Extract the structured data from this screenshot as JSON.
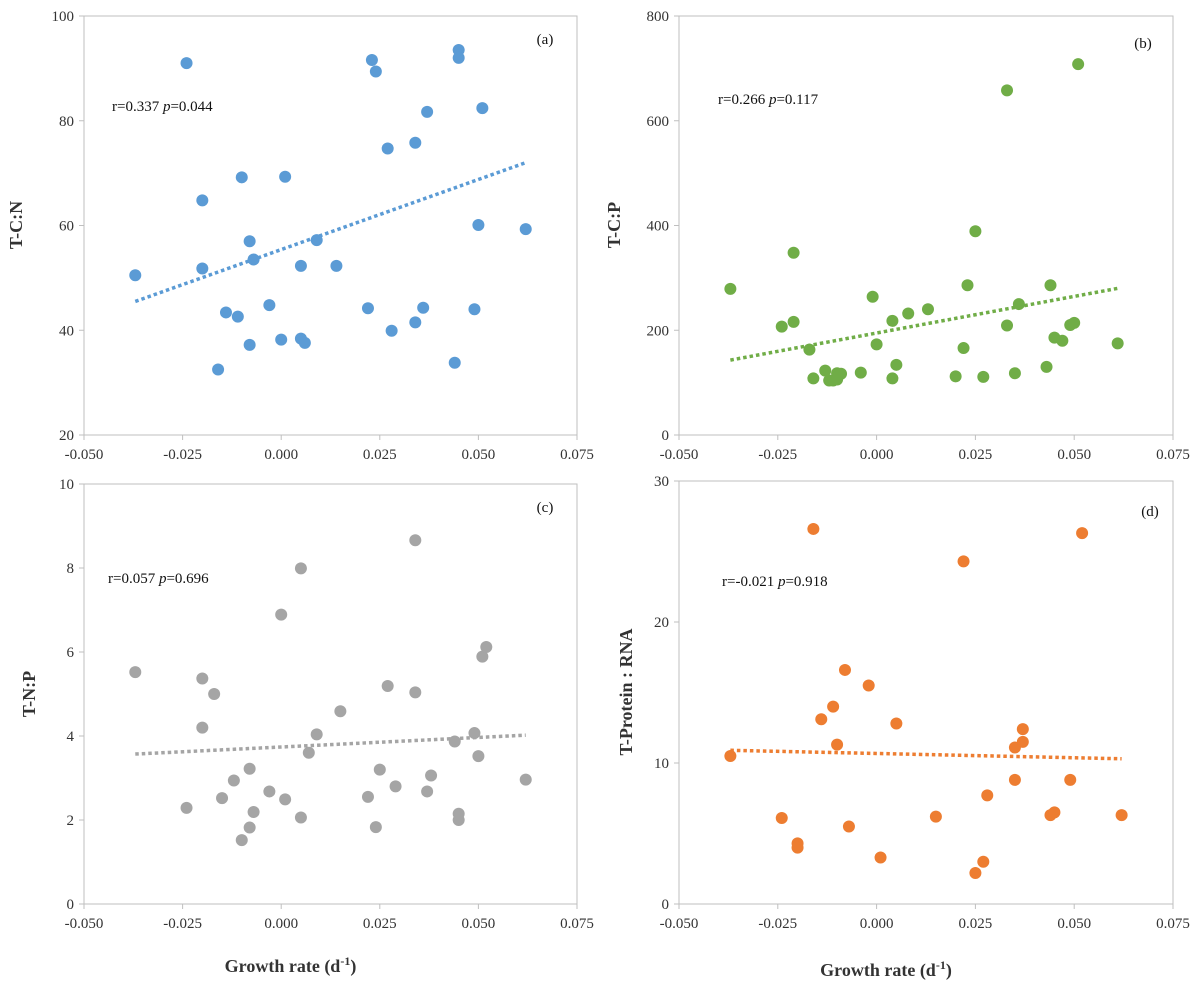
{
  "chart_data": [
    {
      "type": "scatter",
      "panel_label": "(a)",
      "ylabel": "T-C:N",
      "xlabel": "",
      "color": "#5b9bd5",
      "ylim": [
        20,
        100
      ],
      "yticks": [
        20,
        40,
        60,
        80,
        100
      ],
      "xlim": [
        -0.05,
        0.075
      ],
      "xticks": [
        "-0.050",
        "-0.025",
        "0.000",
        "0.025",
        "0.050",
        "0.075"
      ],
      "stat_r": "r=0.337",
      "stat_p_label": "p",
      "stat_p": "=0.044",
      "trendline": {
        "x": [
          -0.037,
          0.062
        ],
        "y": [
          45.5,
          72.0
        ]
      },
      "points": [
        [
          -0.037,
          50.5
        ],
        [
          -0.024,
          91.0
        ],
        [
          -0.02,
          64.8
        ],
        [
          -0.02,
          51.8
        ],
        [
          -0.016,
          32.5
        ],
        [
          -0.014,
          43.4
        ],
        [
          -0.011,
          42.6
        ],
        [
          -0.01,
          69.2
        ],
        [
          -0.008,
          57.0
        ],
        [
          -0.008,
          37.2
        ],
        [
          -0.007,
          53.5
        ],
        [
          -0.003,
          44.8
        ],
        [
          0.0,
          38.2
        ],
        [
          0.001,
          69.3
        ],
        [
          0.005,
          52.3
        ],
        [
          0.005,
          38.4
        ],
        [
          0.006,
          37.6
        ],
        [
          0.009,
          57.2
        ],
        [
          0.014,
          52.3
        ],
        [
          0.022,
          44.2
        ],
        [
          0.023,
          91.6
        ],
        [
          0.024,
          89.4
        ],
        [
          0.027,
          74.7
        ],
        [
          0.028,
          39.9
        ],
        [
          0.034,
          75.8
        ],
        [
          0.034,
          41.5
        ],
        [
          0.036,
          44.3
        ],
        [
          0.037,
          81.7
        ],
        [
          0.044,
          33.8
        ],
        [
          0.045,
          93.5
        ],
        [
          0.045,
          92.0
        ],
        [
          0.049,
          44.0
        ],
        [
          0.05,
          60.1
        ],
        [
          0.051,
          82.4
        ],
        [
          0.062,
          59.3
        ]
      ]
    },
    {
      "type": "scatter",
      "panel_label": "(b)",
      "ylabel": "T-C:P",
      "xlabel": "",
      "color": "#70ad47",
      "ylim": [
        0,
        800
      ],
      "yticks": [
        0,
        200,
        400,
        600,
        800
      ],
      "xlim": [
        -0.05,
        0.075
      ],
      "xticks": [
        "-0.050",
        "-0.025",
        "0.000",
        "0.025",
        "0.050",
        "0.075"
      ],
      "stat_r": "r=0.266",
      "stat_p_label": "p",
      "stat_p": "=0.117",
      "trendline": {
        "x": [
          -0.037,
          0.061
        ],
        "y": [
          143,
          280
        ]
      },
      "points": [
        [
          -0.037,
          279
        ],
        [
          -0.024,
          207
        ],
        [
          -0.021,
          348
        ],
        [
          -0.021,
          216
        ],
        [
          -0.017,
          163
        ],
        [
          -0.016,
          108
        ],
        [
          -0.013,
          123
        ],
        [
          -0.012,
          104
        ],
        [
          -0.011,
          104
        ],
        [
          -0.01,
          118
        ],
        [
          -0.01,
          106
        ],
        [
          -0.009,
          117
        ],
        [
          -0.004,
          119
        ],
        [
          -0.001,
          264
        ],
        [
          0.0,
          173
        ],
        [
          0.004,
          108
        ],
        [
          0.004,
          218
        ],
        [
          0.005,
          134
        ],
        [
          0.008,
          232
        ],
        [
          0.013,
          240
        ],
        [
          0.02,
          112
        ],
        [
          0.022,
          166
        ],
        [
          0.023,
          286
        ],
        [
          0.025,
          389
        ],
        [
          0.027,
          111
        ],
        [
          0.033,
          209
        ],
        [
          0.033,
          658
        ],
        [
          0.035,
          118
        ],
        [
          0.036,
          250
        ],
        [
          0.043,
          130
        ],
        [
          0.044,
          286
        ],
        [
          0.045,
          186
        ],
        [
          0.047,
          180
        ],
        [
          0.049,
          210
        ],
        [
          0.05,
          214
        ],
        [
          0.051,
          708
        ],
        [
          0.061,
          175
        ]
      ]
    },
    {
      "type": "scatter",
      "panel_label": "(c)",
      "ylabel": "T-N:P",
      "xlabel": "Growth rate (d-1)",
      "color": "#a5a5a5",
      "ylim": [
        0,
        10
      ],
      "yticks": [
        0,
        2,
        4,
        6,
        8,
        10
      ],
      "xlim": [
        -0.05,
        0.075
      ],
      "xticks": [
        "-0.050",
        "-0.025",
        "0.000",
        "0.025",
        "0.050",
        "0.075"
      ],
      "stat_r": "r=0.057",
      "stat_p_label": "p",
      "stat_p": "=0.696",
      "trendline": {
        "x": [
          -0.037,
          0.062
        ],
        "y": [
          3.57,
          4.02
        ]
      },
      "points": [
        [
          -0.037,
          5.52
        ],
        [
          -0.024,
          2.29
        ],
        [
          -0.02,
          5.37
        ],
        [
          -0.02,
          4.2
        ],
        [
          -0.017,
          5.0
        ],
        [
          -0.015,
          2.52
        ],
        [
          -0.012,
          2.94
        ],
        [
          -0.01,
          1.52
        ],
        [
          -0.008,
          3.22
        ],
        [
          -0.008,
          1.82
        ],
        [
          -0.007,
          2.19
        ],
        [
          -0.003,
          2.68
        ],
        [
          0.0,
          6.89
        ],
        [
          0.001,
          2.49
        ],
        [
          0.005,
          2.06
        ],
        [
          0.005,
          7.99
        ],
        [
          0.007,
          3.6
        ],
        [
          0.009,
          4.04
        ],
        [
          0.015,
          4.59
        ],
        [
          0.022,
          2.55
        ],
        [
          0.024,
          1.83
        ],
        [
          0.025,
          3.2
        ],
        [
          0.027,
          5.19
        ],
        [
          0.029,
          2.8
        ],
        [
          0.034,
          5.04
        ],
        [
          0.034,
          8.66
        ],
        [
          0.037,
          2.68
        ],
        [
          0.038,
          3.06
        ],
        [
          0.044,
          3.87
        ],
        [
          0.045,
          2.15
        ],
        [
          0.045,
          2.0
        ],
        [
          0.049,
          4.07
        ],
        [
          0.05,
          3.52
        ],
        [
          0.051,
          5.89
        ],
        [
          0.052,
          6.12
        ],
        [
          0.062,
          2.96
        ]
      ]
    },
    {
      "type": "scatter",
      "panel_label": "(d)",
      "ylabel": "T-Protein : RNA",
      "xlabel": "Growth rate (d-1)",
      "color": "#ed7d31",
      "ylim": [
        0,
        30
      ],
      "yticks": [
        0,
        10,
        20,
        30
      ],
      "xlim": [
        -0.05,
        0.075
      ],
      "xticks": [
        "-0.050",
        "-0.025",
        "0.000",
        "0.025",
        "0.050",
        "0.075"
      ],
      "stat_r": "r=-0.021",
      "stat_p_label": "p",
      "stat_p": "=0.918",
      "trendline": {
        "x": [
          -0.037,
          0.062
        ],
        "y": [
          10.9,
          10.3
        ]
      },
      "points": [
        [
          -0.037,
          10.5
        ],
        [
          -0.024,
          6.1
        ],
        [
          -0.02,
          4.3
        ],
        [
          -0.02,
          4.0
        ],
        [
          -0.016,
          26.6
        ],
        [
          -0.014,
          13.1
        ],
        [
          -0.011,
          14.0
        ],
        [
          -0.01,
          11.3
        ],
        [
          -0.008,
          16.6
        ],
        [
          -0.007,
          5.5
        ],
        [
          -0.002,
          15.5
        ],
        [
          0.001,
          3.3
        ],
        [
          0.005,
          12.8
        ],
        [
          0.015,
          6.2
        ],
        [
          0.022,
          24.3
        ],
        [
          0.025,
          2.2
        ],
        [
          0.027,
          3.0
        ],
        [
          0.028,
          7.7
        ],
        [
          0.035,
          11.1
        ],
        [
          0.035,
          8.8
        ],
        [
          0.037,
          11.5
        ],
        [
          0.037,
          12.4
        ],
        [
          0.044,
          6.3
        ],
        [
          0.045,
          6.5
        ],
        [
          0.049,
          8.8
        ],
        [
          0.052,
          26.3
        ],
        [
          0.062,
          6.3
        ]
      ]
    }
  ]
}
